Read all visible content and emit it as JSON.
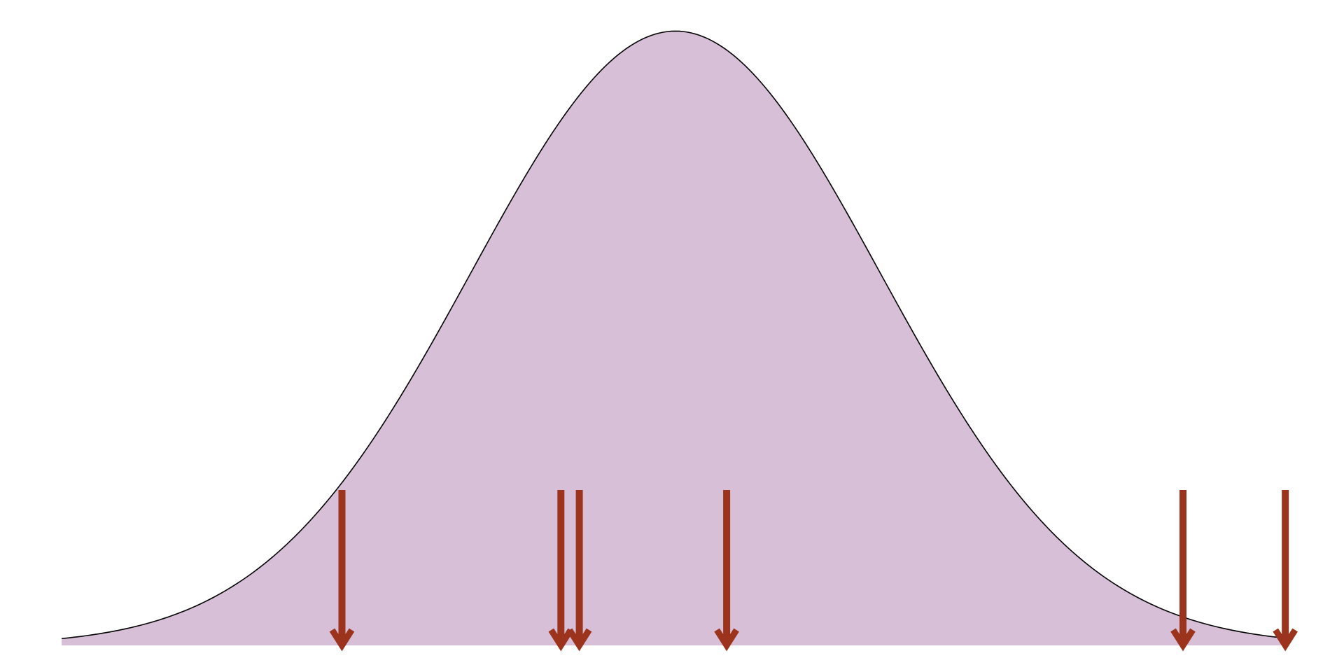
{
  "chart_data": {
    "type": "area",
    "description_visible_text": "",
    "curve": {
      "x": [
        -3.0,
        -2.5,
        -2.0,
        -1.75,
        -1.5,
        -1.25,
        -1.0,
        -0.75,
        -0.5,
        -0.25,
        0.0,
        0.25,
        0.5,
        0.75,
        1.0,
        1.25,
        1.5,
        1.75,
        2.0,
        2.5,
        3.0
      ],
      "y": [
        0.0044,
        0.0175,
        0.054,
        0.0863,
        0.1295,
        0.1826,
        0.242,
        0.3011,
        0.3521,
        0.3867,
        0.3989,
        0.3867,
        0.3521,
        0.3011,
        0.242,
        0.1826,
        0.1295,
        0.0863,
        0.054,
        0.0175,
        0.0044
      ]
    },
    "markers": {
      "x": [
        -1.63,
        -0.56,
        -0.47,
        0.25,
        2.48,
        2.98
      ]
    },
    "xlim": [
      -3.0,
      3.0
    ],
    "ylim": [
      0,
      0.4
    ],
    "grid": false,
    "colors": {
      "fill": "#d7bfd7",
      "outline": "#000000",
      "marker": "#9c331c",
      "background": "#ffffff"
    }
  }
}
